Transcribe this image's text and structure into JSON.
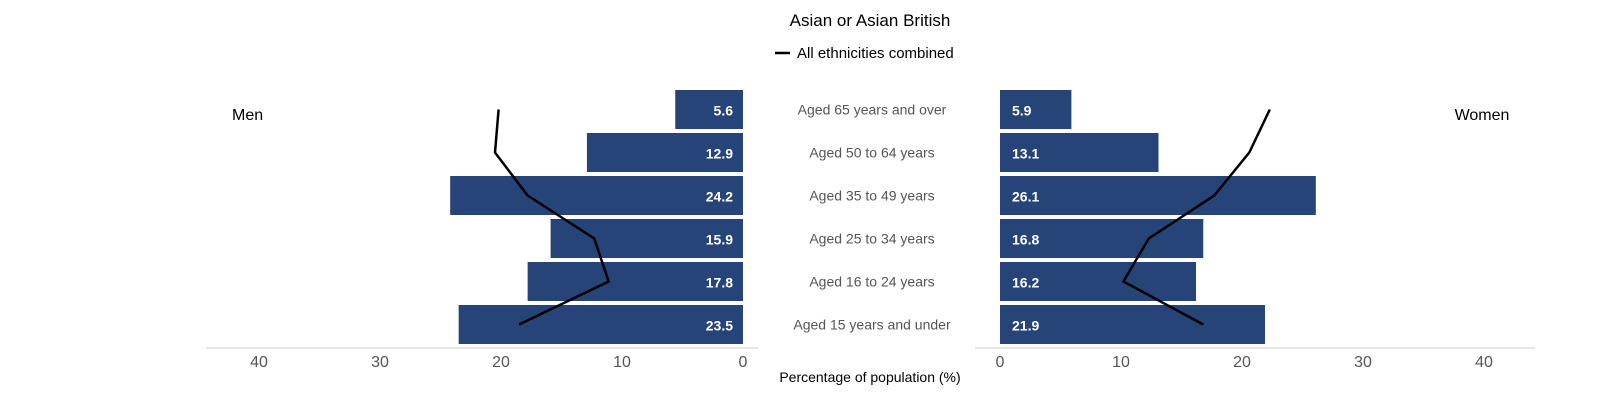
{
  "chart_data": {
    "type": "bar",
    "orientation": "horizontal",
    "layout": "population-pyramid",
    "title": "Asian or Asian British",
    "xlabel": "Percentage of population (%)",
    "left_label": "Men",
    "right_label": "Women",
    "categories": [
      "Aged 65 years and over",
      "Aged 50 to 64 years",
      "Aged 35 to 49 years",
      "Aged 25 to 34 years",
      "Aged 16 to 24 years",
      "Aged 15 years and under"
    ],
    "series": [
      {
        "name": "Men",
        "values": [
          5.6,
          12.9,
          24.2,
          15.9,
          17.8,
          23.5
        ],
        "labels": [
          "5.6",
          "12.9",
          "24.2",
          "15.9",
          "17.8",
          "23.5"
        ]
      },
      {
        "name": "Women",
        "values": [
          5.9,
          13.1,
          26.1,
          16.8,
          16.2,
          21.9
        ],
        "labels": [
          "5.9",
          "13.1",
          "26.1",
          "16.8",
          "16.2",
          "21.9"
        ]
      }
    ],
    "overlay_line": {
      "name": "All ethnicities combined",
      "men": [
        20.2,
        20.5,
        17.8,
        12.3,
        11.1,
        18.5
      ],
      "women": [
        22.3,
        20.6,
        17.7,
        12.3,
        10.2,
        16.8
      ]
    },
    "xlim": [
      0,
      40
    ],
    "ticks": [
      {
        "value": 40,
        "label": "40"
      },
      {
        "value": 30,
        "label": "30"
      },
      {
        "value": 20,
        "label": "20"
      },
      {
        "value": 10,
        "label": "10"
      },
      {
        "value": 0,
        "label": "0"
      }
    ],
    "colors": {
      "bar": "#264478",
      "line": "#000000",
      "axis": "#cccccc"
    },
    "legend_position": "top-center",
    "grid": false
  }
}
